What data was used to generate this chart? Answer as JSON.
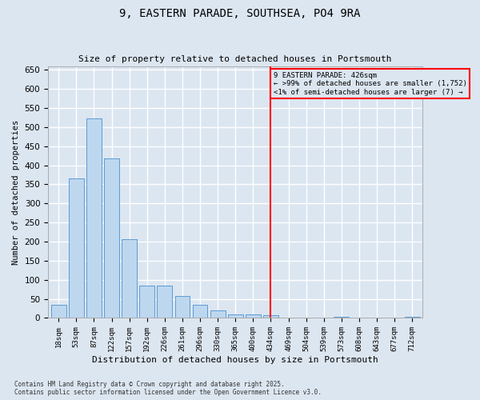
{
  "title": "9, EASTERN PARADE, SOUTHSEA, PO4 9RA",
  "subtitle": "Size of property relative to detached houses in Portsmouth",
  "xlabel": "Distribution of detached houses by size in Portsmouth",
  "ylabel": "Number of detached properties",
  "categories": [
    "18sqm",
    "53sqm",
    "87sqm",
    "122sqm",
    "157sqm",
    "192sqm",
    "226sqm",
    "261sqm",
    "296sqm",
    "330sqm",
    "365sqm",
    "400sqm",
    "434sqm",
    "469sqm",
    "504sqm",
    "539sqm",
    "573sqm",
    "608sqm",
    "643sqm",
    "677sqm",
    "712sqm"
  ],
  "values": [
    35,
    365,
    523,
    418,
    207,
    85,
    85,
    57,
    35,
    20,
    10,
    10,
    8,
    0,
    0,
    0,
    3,
    0,
    0,
    0,
    3
  ],
  "bar_color": "#bdd7ee",
  "bar_edge_color": "#5b9bd5",
  "bg_color": "#dce6f1",
  "grid_color": "#ffffff",
  "vline_x": 12,
  "vline_color": "#ff0000",
  "annotation_title": "9 EASTERN PARADE: 426sqm",
  "annotation_line1": "← >99% of detached houses are smaller (1,752)",
  "annotation_line2": "<1% of semi-detached houses are larger (7) →",
  "annotation_box_color": "#ff0000",
  "footnote1": "Contains HM Land Registry data © Crown copyright and database right 2025.",
  "footnote2": "Contains public sector information licensed under the Open Government Licence v3.0.",
  "ylim": [
    0,
    660
  ],
  "yticks": [
    0,
    50,
    100,
    150,
    200,
    250,
    300,
    350,
    400,
    450,
    500,
    550,
    600,
    650
  ]
}
